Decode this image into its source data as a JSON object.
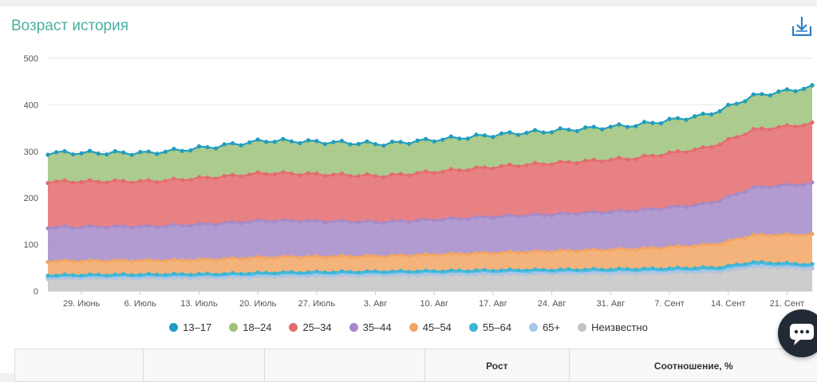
{
  "page": {
    "title": "Возраст история",
    "download_icon": "download-icon",
    "chat_icon": "chat-bubble-icon"
  },
  "table": {
    "headers": [
      "",
      "",
      "",
      "Рост",
      "Соотношение, %"
    ]
  },
  "chart_data": {
    "type": "area",
    "stacked": true,
    "y_ticks": [
      "0",
      "100",
      "200",
      "300",
      "400",
      "500"
    ],
    "ylim": [
      0,
      500
    ],
    "x_tick_labels": [
      "29. Июнь",
      "6. Июль",
      "13. Июль",
      "20. Июль",
      "27. Июль",
      "3. Авг",
      "10. Авг",
      "17. Авг",
      "24. Авг",
      "31. Авг",
      "7. Сент",
      "14. Сент",
      "21. Сент"
    ],
    "x_tick_day_index": [
      4,
      11,
      18,
      25,
      32,
      39,
      46,
      53,
      60,
      67,
      74,
      81,
      88
    ],
    "days": 92,
    "grid": true,
    "legend_position": "bottom",
    "series": [
      {
        "name": "Неизвестно",
        "color": "#c4c4c4",
        "keyframes": [
          [
            0,
            26
          ],
          [
            10,
            27
          ],
          [
            20,
            28
          ],
          [
            28,
            31
          ],
          [
            40,
            33
          ],
          [
            55,
            36
          ],
          [
            70,
            38
          ],
          [
            80,
            41
          ],
          [
            84,
            52
          ],
          [
            91,
            48
          ]
        ]
      },
      {
        "name": "65+",
        "color": "#a8c6ec",
        "keyframes": [
          [
            0,
            2
          ],
          [
            91,
            2
          ]
        ]
      },
      {
        "name": "55-64",
        "color": "#3cb5d6",
        "keyframes": [
          [
            0,
            6
          ],
          [
            30,
            7
          ],
          [
            60,
            7
          ],
          [
            84,
            8
          ],
          [
            91,
            7
          ]
        ]
      },
      {
        "name": "45-54",
        "color": "#f2a664",
        "keyframes": [
          [
            0,
            30
          ],
          [
            15,
            30
          ],
          [
            25,
            33
          ],
          [
            40,
            33
          ],
          [
            55,
            38
          ],
          [
            70,
            43
          ],
          [
            78,
            48
          ],
          [
            84,
            58
          ],
          [
            91,
            64
          ]
        ]
      },
      {
        "name": "35-44",
        "color": "#a58ac8",
        "keyframes": [
          [
            0,
            73
          ],
          [
            12,
            73
          ],
          [
            26,
            79
          ],
          [
            40,
            73
          ],
          [
            55,
            78
          ],
          [
            70,
            82
          ],
          [
            78,
            88
          ],
          [
            84,
            102
          ],
          [
            91,
            110
          ]
        ]
      },
      {
        "name": "25-34",
        "color": "#e46b6f",
        "keyframes": [
          [
            0,
            98
          ],
          [
            12,
            97
          ],
          [
            26,
            102
          ],
          [
            40,
            99
          ],
          [
            55,
            108
          ],
          [
            70,
            113
          ],
          [
            78,
            120
          ],
          [
            84,
            124
          ],
          [
            91,
            128
          ]
        ]
      },
      {
        "name": "18-24",
        "color": "#9ec27a",
        "keyframes": [
          [
            0,
            61
          ],
          [
            12,
            60
          ],
          [
            26,
            69
          ],
          [
            40,
            68
          ],
          [
            55,
            68
          ],
          [
            70,
            70
          ],
          [
            78,
            70
          ],
          [
            84,
            72
          ],
          [
            91,
            78
          ]
        ]
      },
      {
        "name": "13-17",
        "color": "#1f9dc2",
        "keyframes": [
          [
            0,
            1
          ],
          [
            91,
            1
          ]
        ]
      }
    ],
    "legend_order": [
      "13–17",
      "18–24",
      "25–34",
      "35–44",
      "45–54",
      "55–64",
      "65+",
      "Неизвестно"
    ],
    "legend_colors": [
      "#1f9dc2",
      "#9ec27a",
      "#e46b6f",
      "#a58ac8",
      "#f2a664",
      "#3cb5d6",
      "#a8c6ec",
      "#c4c4c4"
    ]
  }
}
